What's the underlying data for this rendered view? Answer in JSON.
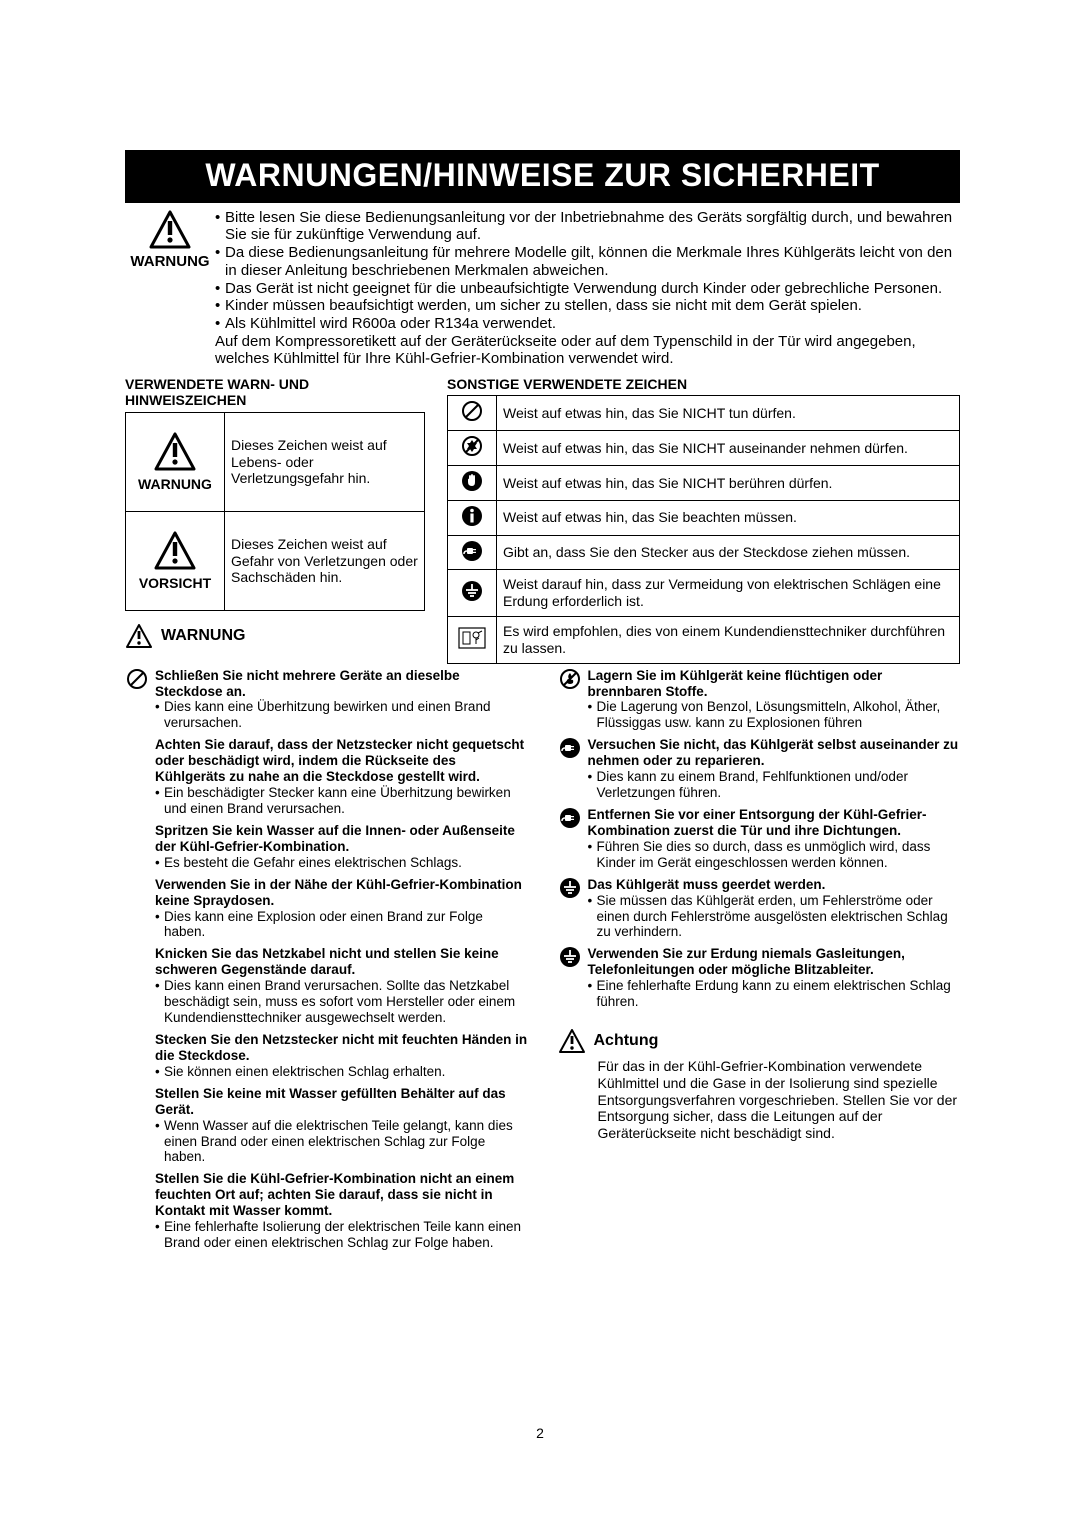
{
  "banner": "WARNUNGEN/HINWEISE ZUR SICHERHEIT",
  "intro": {
    "label": "WARNUNG",
    "bullets": [
      "Bitte lesen Sie diese Bedienungsanleitung vor der Inbetriebnahme des Geräts sorgfältig durch, und bewahren Sie sie für zukünftige Verwendung auf.",
      "Da diese Bedienungsanleitung für mehrere Modelle gilt, können die Merkmale Ihres Kühlgeräts leicht von den in dieser Anleitung beschriebenen Merkmalen abweichen.",
      "Das Gerät ist nicht geeignet für die unbeaufsichtigte Verwendung durch Kinder oder gebrechliche Personen.",
      "Kinder müssen beaufsichtigt werden, um sicher zu stellen, dass sie nicht mit dem Gerät spielen.",
      "Als Kühlmittel wird R600a oder R134a verwendet."
    ],
    "tail": "Auf dem Kompressoretikett auf der Geräterückseite oder auf dem Typenschild in der Tür wird angegeben, welches Kühlmittel für Ihre Kühl-Gefrier-Kombination verwendet wird."
  },
  "leftTable": {
    "title": "VERWENDETE WARN- UND HINWEISZEICHEN",
    "rows": [
      {
        "label": "WARNUNG",
        "text": "Dieses Zeichen weist auf Lebens- oder Verletzungsgefahr hin."
      },
      {
        "label": "VORSICHT",
        "text": "Dieses Zeichen weist auf Gefahr von Verletzungen oder Sachschäden hin."
      }
    ]
  },
  "rightTable": {
    "title": "SONSTIGE VERWENDETE ZEICHEN",
    "rows": [
      {
        "icon": "prohibit",
        "text": "Weist auf etwas hin, das Sie NICHT tun dürfen."
      },
      {
        "icon": "no-disassemble",
        "text": "Weist auf etwas hin, das Sie NICHT auseinander nehmen dürfen."
      },
      {
        "icon": "no-touch",
        "text": "Weist auf etwas hin, das Sie NICHT berühren dürfen."
      },
      {
        "icon": "notice",
        "text": "Weist auf etwas hin, das Sie beachten müssen."
      },
      {
        "icon": "unplug",
        "text": "Gibt an, dass Sie den Stecker aus der Steckdose ziehen müssen."
      },
      {
        "icon": "ground",
        "text": "Weist darauf hin, dass zur Vermeidung von elektrischen Schlägen eine Erdung erforderlich ist."
      },
      {
        "icon": "service",
        "text": "Es wird empfohlen, dies von einem Kundendiensttechniker durchführen zu lassen."
      }
    ]
  },
  "warnHeader": "WARNUNG",
  "warningsLeft": [
    {
      "icon": "prohibit",
      "head": "Schließen Sie nicht mehrere Geräte an dieselbe Steckdose an.",
      "bullets": [
        "Dies kann eine Überhitzung bewirken und einen Brand verursachen."
      ]
    },
    {
      "icon": "",
      "head": "Achten Sie darauf, dass der Netzstecker nicht gequetscht oder beschädigt wird, indem die Rückseite des Kühlgeräts zu nahe an die Steckdose gestellt wird.",
      "bullets": [
        "Ein beschädigter Stecker kann eine Überhitzung bewirken und einen Brand verursachen."
      ]
    },
    {
      "icon": "",
      "head": "Spritzen Sie kein Wasser auf die Innen- oder Außenseite der Kühl-Gefrier-Kombination.",
      "bullets": [
        "Es besteht die Gefahr eines elektrischen Schlags."
      ]
    },
    {
      "icon": "",
      "head": "Verwenden Sie in der Nähe der Kühl-Gefrier-Kombination keine Spraydosen.",
      "bullets": [
        "Dies kann eine Explosion oder einen Brand zur Folge haben."
      ]
    },
    {
      "icon": "",
      "head": "Knicken Sie das Netzkabel nicht und stellen Sie keine schweren Gegenstände darauf.",
      "bullets": [
        "Dies kann einen Brand verursachen. Sollte das Netzkabel beschädigt sein, muss es sofort vom Hersteller oder einem Kundendiensttechniker ausgewechselt werden."
      ]
    },
    {
      "icon": "",
      "head": "Stecken Sie den Netzstecker nicht mit feuchten Händen in die Steckdose.",
      "bullets": [
        "Sie können einen elektrischen Schlag erhalten."
      ]
    },
    {
      "icon": "",
      "head": "Stellen Sie keine mit Wasser gefüllten Behälter auf das Gerät.",
      "bullets": [
        "Wenn Wasser auf die elektrischen Teile gelangt, kann dies einen Brand oder einen elektrischen Schlag zur Folge haben."
      ]
    },
    {
      "icon": "",
      "head": "Stellen Sie die Kühl-Gefrier-Kombination nicht an einem feuchten Ort auf; achten Sie darauf, dass sie nicht in Kontakt mit Wasser kommt.",
      "bullets": [
        "Eine fehlerhafte Isolierung der elektrischen Teile kann einen Brand oder einen elektrischen Schlag zur Folge haben."
      ]
    }
  ],
  "warningsRight": [
    {
      "icon": "no-flame",
      "head": "Lagern Sie im Kühlgerät keine flüchtigen oder brennbaren Stoffe.",
      "bullets": [
        "Die Lagerung von Benzol, Lösungsmitteln, Alkohol, Äther, Flüssiggas usw. kann zu Explosionen führen"
      ]
    },
    {
      "icon": "unplug",
      "head": "Versuchen Sie nicht, das Kühlgerät selbst auseinander zu nehmen oder zu reparieren.",
      "bullets": [
        "Dies kann zu einem Brand, Fehlfunktionen und/oder Verletzungen führen."
      ]
    },
    {
      "icon": "unplug",
      "head": "Entfernen Sie vor einer Entsorgung der Kühl-Gefrier- Kombination zuerst die Tür und ihre Dichtungen.",
      "bullets": [
        "Führen Sie dies so durch, dass es unmöglich wird, dass Kinder im Gerät eingeschlossen werden können."
      ]
    },
    {
      "icon": "ground",
      "head": "Das Kühlgerät muss geerdet werden.",
      "bullets": [
        "Sie müssen das Kühlgerät erden, um Fehlerströme oder einen durch Fehlerströme ausgelösten elektrischen Schlag zu verhindern."
      ]
    },
    {
      "icon": "ground",
      "head": "Verwenden Sie zur Erdung niemals Gasleitungen, Telefonleitungen oder mögliche Blitzableiter.",
      "bullets": [
        "Eine fehlerhafte Erdung kann zu einem elektrischen Schlag führen."
      ]
    }
  ],
  "achtung": {
    "label": "Achtung",
    "text": "Für das in der Kühl-Gefrier-Kombination verwendete Kühlmittel und die Gase in der Isolierung sind spezielle Entsorgungsverfahren vorgeschrieben. Stellen Sie vor der Entsorgung sicher, dass die Leitungen auf der Geräterückseite nicht beschädigt sind."
  },
  "pageNumber": "2"
}
